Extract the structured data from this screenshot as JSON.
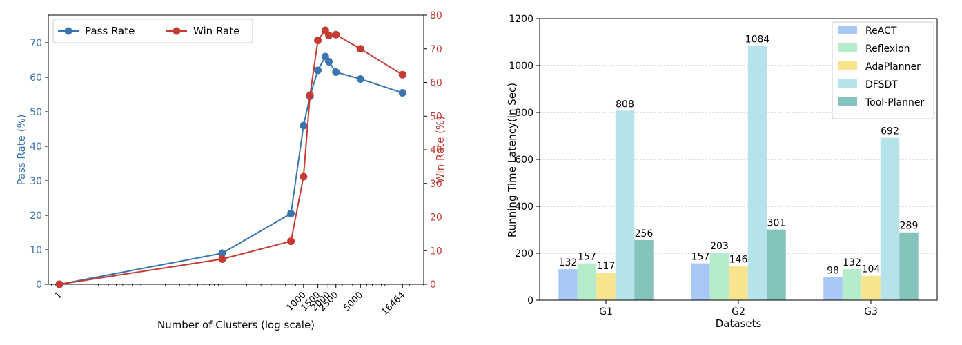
{
  "colors": {
    "pass": "#3b75af",
    "win": "#c53a32",
    "bars": [
      "#a8c8f5",
      "#b5ecc9",
      "#f8e38e",
      "#b6e3ea",
      "#85c4bd"
    ],
    "axis": "#000000",
    "grid": "#b0b0b0"
  },
  "chart_data": [
    {
      "type": "line",
      "title": "",
      "xlabel": "Number of Clusters (log scale)",
      "ylabel_left": "Pass Rate (%)",
      "ylabel_right": "Win Rate (%)",
      "xscale": "log",
      "xlim": [
        0.73,
        30000
      ],
      "ylim_left": [
        0,
        78
      ],
      "ylim_right": [
        0,
        80
      ],
      "yticks_left": [
        0,
        10,
        20,
        30,
        40,
        50,
        60,
        70
      ],
      "yticks_right": [
        0,
        10,
        20,
        30,
        40,
        50,
        60,
        70,
        80
      ],
      "xticks": [
        {
          "value": 1,
          "label": "1"
        },
        {
          "value": 1000,
          "label": "1000"
        },
        {
          "value": 1500,
          "label": "1500"
        },
        {
          "value": 2000,
          "label": "2000"
        },
        {
          "value": 2500,
          "label": "2500"
        },
        {
          "value": 5000,
          "label": "5000"
        },
        {
          "value": 16464,
          "label": "16464"
        }
      ],
      "legend": "top-left",
      "series": [
        {
          "name": "Pass Rate",
          "axis": "left",
          "x": [
            1,
            100,
            700,
            1000,
            1200,
            1500,
            1850,
            2050,
            2500,
            5000,
            16464
          ],
          "y": [
            0,
            9,
            20.5,
            46,
            54.5,
            62,
            66,
            64.5,
            61.5,
            59.5,
            55.5
          ]
        },
        {
          "name": "Win Rate",
          "axis": "right",
          "x": [
            1,
            100,
            700,
            1000,
            1200,
            1500,
            1850,
            2050,
            2500,
            5000,
            16464
          ],
          "y": [
            0,
            7.5,
            12.8,
            32,
            56.2,
            72.5,
            75.5,
            74,
            74.2,
            70,
            62.3
          ]
        }
      ]
    },
    {
      "type": "bar",
      "title": "",
      "xlabel": "Datasets",
      "ylabel": "Running Time Latency(in Sec)",
      "ylim": [
        0,
        1200
      ],
      "yticks": [
        0,
        200,
        400,
        600,
        800,
        1000,
        1200
      ],
      "grid": true,
      "legend": "top-right",
      "categories": [
        "G1",
        "G2",
        "G3"
      ],
      "series": [
        {
          "name": "ReACT",
          "values": [
            132,
            157,
            98
          ]
        },
        {
          "name": "Reflexion",
          "values": [
            157,
            203,
            132
          ]
        },
        {
          "name": "AdaPlanner",
          "values": [
            117,
            146,
            104
          ]
        },
        {
          "name": "DFSDT",
          "values": [
            808,
            1084,
            692
          ]
        },
        {
          "name": "Tool-Planner",
          "values": [
            256,
            301,
            289
          ]
        }
      ]
    }
  ]
}
